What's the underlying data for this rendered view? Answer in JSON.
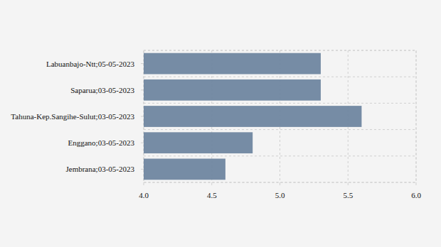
{
  "chart_data": {
    "type": "bar",
    "orientation": "horizontal",
    "categories": [
      "Labuanbajo-Ntt;05-05-2023",
      "Saparua;03-05-2023",
      "Tahuna-Kep.Sangihe-Sulut;03-05-2023",
      "Enggano;03-05-2023",
      "Jembrana;03-05-2023"
    ],
    "values": [
      5.3,
      5.3,
      5.6,
      4.8,
      4.6
    ],
    "color": "#6f86a0",
    "xlim": [
      4.0,
      6.0
    ],
    "xticks": [
      {
        "value": 4.0,
        "label": "4.0"
      },
      4.5,
      {
        "value": 5.0,
        "label": "5.0"
      },
      5.5,
      {
        "value": 6.0,
        "label": "6.0"
      }
    ],
    "grid": true
  }
}
